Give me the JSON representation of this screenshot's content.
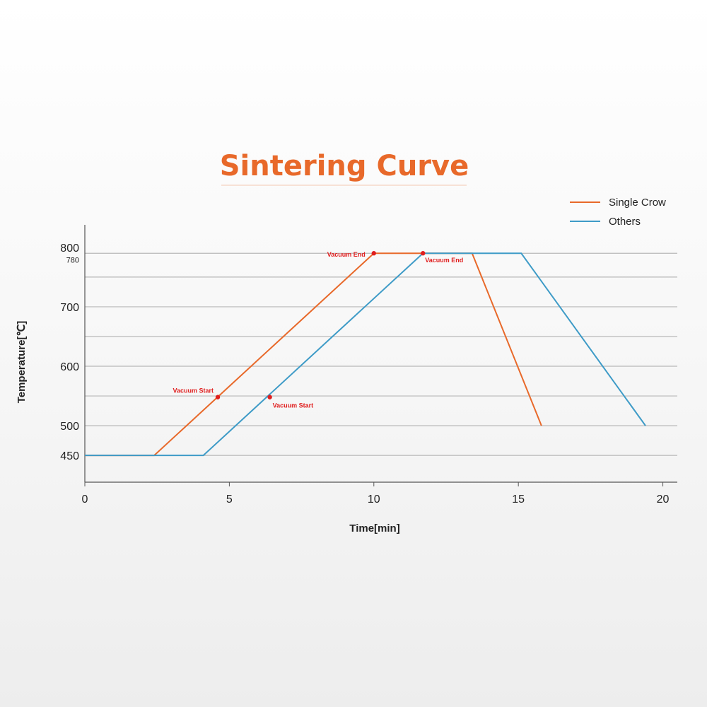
{
  "chart_data": {
    "type": "line",
    "title": "Sintering Curve",
    "xlabel": "Time[min]",
    "ylabel": "Temperature[℃]",
    "xlim": [
      0,
      20.5
    ],
    "ylim": [
      405,
      820
    ],
    "x_ticks": [
      0,
      5,
      10,
      15,
      20
    ],
    "y_ticks": [
      {
        "value": 800,
        "label": "800"
      },
      {
        "value": 780,
        "label": "780"
      },
      {
        "value": 700,
        "label": "700"
      },
      {
        "value": 600,
        "label": "600"
      },
      {
        "value": 500,
        "label": "500"
      },
      {
        "value": 450,
        "label": "450"
      }
    ],
    "gridlines_y": [
      790,
      750,
      700,
      650,
      600,
      550,
      500,
      450
    ],
    "grid": true,
    "legend_position": "top-right",
    "series": [
      {
        "name": "Single Crow",
        "color": "#E8692A",
        "x": [
          0,
          2.4,
          10.0,
          13.4,
          15.8
        ],
        "y": [
          450,
          450,
          790,
          790,
          500
        ]
      },
      {
        "name": "Others",
        "color": "#3E9BC7",
        "x": [
          0,
          4.1,
          11.7,
          15.1,
          19.4
        ],
        "y": [
          450,
          450,
          790,
          790,
          500
        ]
      }
    ],
    "annotations": [
      {
        "text": "Vacuum Start",
        "x": 4.6,
        "y": 548,
        "anchor": "end",
        "dx": -6,
        "dy": -6
      },
      {
        "text": "Vacuum End",
        "x": 10.0,
        "y": 790,
        "anchor": "end",
        "dx": -12,
        "dy": 5
      },
      {
        "text": "Vacuum Start",
        "x": 6.4,
        "y": 548,
        "anchor": "start",
        "dx": 4,
        "dy": 15
      },
      {
        "text": "Vacuum End",
        "x": 11.7,
        "y": 790,
        "anchor": "start",
        "dx": 3,
        "dy": 13
      }
    ],
    "annotation_color": "#E01E1E"
  },
  "colors": {
    "title": "#E8692A",
    "axis": "#555555",
    "grid": "#B8B8B8",
    "annotation_dot": "#E01E1E"
  }
}
